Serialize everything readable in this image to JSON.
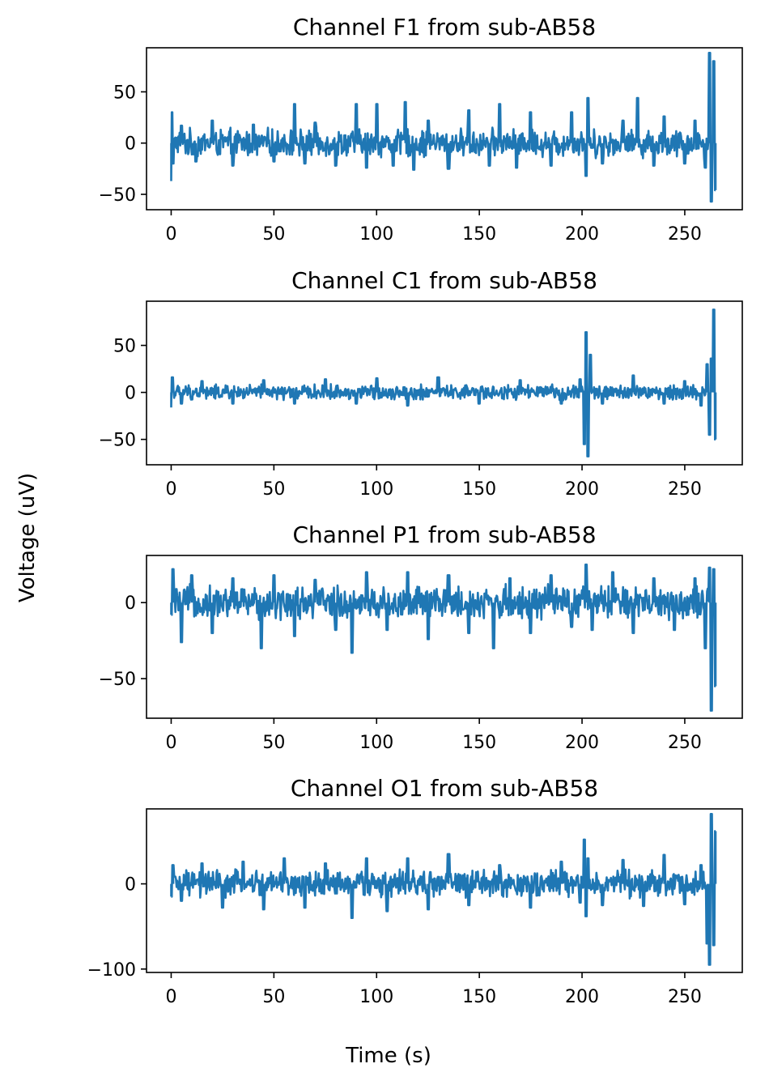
{
  "figure": {
    "xlabel": "Time (s)",
    "ylabel": "Voltage (uV)",
    "line_color": "#1f77b4"
  },
  "chart_data": [
    {
      "type": "line",
      "title": "Channel F1 from sub-AB58",
      "xlim": [
        -12,
        278
      ],
      "ylim": [
        -65,
        93
      ],
      "x_ticks": [
        0,
        50,
        100,
        150,
        200,
        250
      ],
      "x_tick_labels": [
        "0",
        "50",
        "100",
        "150",
        "200",
        "250"
      ],
      "y_ticks": [
        50,
        0,
        -50
      ],
      "y_tick_labels": [
        "50",
        "0",
        "−50"
      ],
      "series": [
        {
          "x": [
            0,
            0.5,
            1,
            5,
            12,
            20,
            30,
            40,
            50,
            60,
            65,
            70,
            80,
            90,
            95,
            100,
            108,
            114,
            118,
            125,
            135,
            145,
            155,
            160,
            168,
            175,
            185,
            195,
            202,
            203,
            210,
            220,
            227,
            235,
            240,
            250,
            255,
            260,
            262,
            263,
            264,
            265
          ],
          "y": [
            -37,
            30,
            -20,
            17,
            -18,
            22,
            -22,
            18,
            -18,
            38,
            -20,
            20,
            -22,
            38,
            -24,
            38,
            -22,
            40,
            -26,
            22,
            -25,
            32,
            -22,
            38,
            -24,
            30,
            -22,
            30,
            -32,
            44,
            -20,
            22,
            44,
            -22,
            26,
            -20,
            22,
            -24,
            88,
            -57,
            80,
            -46
          ]
        }
      ]
    },
    {
      "type": "line",
      "title": "Channel C1 from sub-AB58",
      "xlim": [
        -12,
        278
      ],
      "ylim": [
        -77,
        97
      ],
      "x_ticks": [
        0,
        50,
        100,
        150,
        200,
        250
      ],
      "x_tick_labels": [
        "0",
        "50",
        "100",
        "150",
        "200",
        "250"
      ],
      "y_ticks": [
        50,
        0,
        -50
      ],
      "y_tick_labels": [
        "50",
        "0",
        "−50"
      ],
      "series": [
        {
          "x": [
            0,
            0.5,
            5,
            15,
            30,
            45,
            60,
            75,
            90,
            100,
            115,
            130,
            150,
            170,
            190,
            199,
            201,
            202,
            203,
            204,
            210,
            225,
            240,
            250,
            258,
            261,
            262,
            263,
            264,
            265
          ],
          "y": [
            -16,
            16,
            -12,
            12,
            -12,
            13,
            -12,
            14,
            -12,
            15,
            -14,
            16,
            -12,
            13,
            -12,
            14,
            -55,
            64,
            -68,
            40,
            -12,
            18,
            -12,
            12,
            -14,
            30,
            -45,
            36,
            88,
            -50
          ]
        }
      ]
    },
    {
      "type": "line",
      "title": "Channel P1 from sub-AB58",
      "xlim": [
        -12,
        278
      ],
      "ylim": [
        -76,
        31
      ],
      "x_ticks": [
        0,
        50,
        100,
        150,
        200,
        250
      ],
      "x_tick_labels": [
        "0",
        "50",
        "100",
        "150",
        "200",
        "250"
      ],
      "y_ticks": [
        0,
        -50
      ],
      "y_tick_labels": [
        "0",
        "−50"
      ],
      "series": [
        {
          "x": [
            0,
            1,
            5,
            10,
            20,
            30,
            44,
            50,
            60,
            70,
            80,
            88,
            95,
            105,
            115,
            125,
            135,
            145,
            157,
            165,
            175,
            185,
            195,
            202,
            205,
            215,
            225,
            235,
            245,
            255,
            260,
            262,
            263,
            264,
            265
          ],
          "y": [
            -8,
            22,
            -26,
            18,
            -20,
            16,
            -30,
            18,
            -22,
            15,
            -18,
            -33,
            20,
            -18,
            20,
            -24,
            18,
            -20,
            -30,
            16,
            -20,
            18,
            -16,
            25,
            -18,
            20,
            -20,
            16,
            -18,
            16,
            -30,
            23,
            -71,
            22,
            -55
          ]
        }
      ]
    },
    {
      "type": "line",
      "title": "Channel O1 from sub-AB58",
      "xlim": [
        -12,
        278
      ],
      "ylim": [
        -104,
        88
      ],
      "x_ticks": [
        0,
        50,
        100,
        150,
        200,
        250
      ],
      "x_tick_labels": [
        "0",
        "50",
        "100",
        "150",
        "200",
        "250"
      ],
      "y_ticks": [
        0,
        -100
      ],
      "y_tick_labels": [
        "0",
        "−100"
      ],
      "series": [
        {
          "x": [
            0,
            1,
            5,
            15,
            25,
            35,
            45,
            55,
            65,
            75,
            88,
            95,
            105,
            115,
            125,
            135,
            145,
            160,
            175,
            190,
            199,
            201,
            202,
            203,
            210,
            220,
            230,
            240,
            250,
            258,
            261,
            262,
            263,
            264,
            265
          ],
          "y": [
            -15,
            22,
            -20,
            24,
            -28,
            26,
            -30,
            30,
            -28,
            24,
            -40,
            30,
            -32,
            30,
            -30,
            35,
            -25,
            22,
            -28,
            26,
            -22,
            52,
            -38,
            30,
            -25,
            28,
            -26,
            34,
            -24,
            22,
            -70,
            -95,
            82,
            -72,
            62
          ]
        }
      ]
    }
  ]
}
